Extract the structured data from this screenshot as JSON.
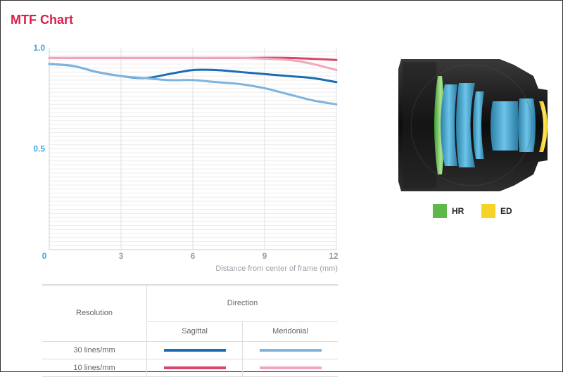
{
  "title": "MTF Chart",
  "chart_data": {
    "type": "line",
    "xlabel": "Distance from center of frame (mm)",
    "ylabel": "",
    "xlim": [
      0,
      12
    ],
    "ylim": [
      0,
      1.0
    ],
    "x_ticks": [
      "0",
      "3",
      "6",
      "9",
      "12"
    ],
    "y_ticks": [
      "1.0",
      "0.5"
    ],
    "series": [
      {
        "key": "s10",
        "color": "#d9456b",
        "width": 3,
        "x": [
          0,
          2,
          4,
          6,
          8,
          10,
          12
        ],
        "y": [
          0.95,
          0.95,
          0.95,
          0.95,
          0.95,
          0.95,
          0.94
        ]
      },
      {
        "key": "m10",
        "color": "#f0a8ba",
        "width": 3,
        "x": [
          0,
          2,
          4,
          6,
          8,
          10,
          11,
          12
        ],
        "y": [
          0.95,
          0.95,
          0.95,
          0.95,
          0.95,
          0.94,
          0.92,
          0.89
        ]
      },
      {
        "key": "s30",
        "color": "#1a6db5",
        "width": 3,
        "x": [
          0,
          1,
          2,
          3,
          4,
          5,
          6,
          7,
          8,
          9,
          10,
          11,
          12
        ],
        "y": [
          0.92,
          0.91,
          0.88,
          0.86,
          0.85,
          0.87,
          0.89,
          0.89,
          0.88,
          0.87,
          0.86,
          0.85,
          0.83
        ]
      },
      {
        "key": "m30",
        "color": "#7db4e0",
        "width": 3,
        "x": [
          0,
          1,
          2,
          3,
          4,
          5,
          6,
          7,
          8,
          9,
          10,
          11,
          12
        ],
        "y": [
          0.92,
          0.91,
          0.88,
          0.86,
          0.85,
          0.84,
          0.84,
          0.83,
          0.82,
          0.8,
          0.77,
          0.74,
          0.72
        ]
      }
    ]
  },
  "legend": {
    "resolution_header": "Resolution",
    "direction_header": "Direction",
    "sagittal": "Sagittal",
    "meridional": "Meridonial",
    "row1_label": "30 lines/mm",
    "row2_label": "10 lines/mm",
    "colors": {
      "row1_sagittal": "#1a6db5",
      "row1_meridional": "#7db4e0",
      "row2_sagittal": "#d9456b",
      "row2_meridional": "#f0a8ba"
    }
  },
  "lens_legend": {
    "hr_label": "HR",
    "hr_color": "#5cb94a",
    "ed_label": "ED",
    "ed_color": "#f5d327"
  }
}
